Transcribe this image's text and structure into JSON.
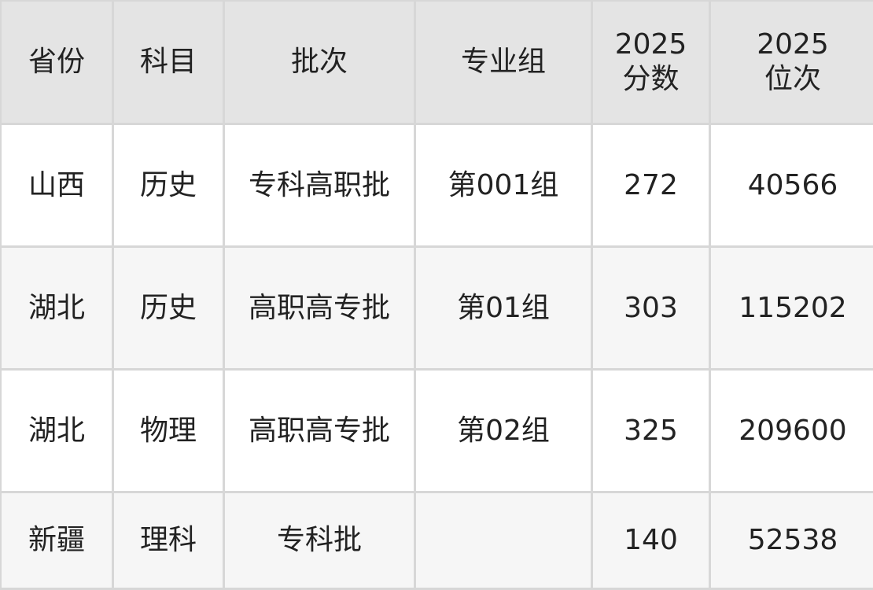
{
  "headers": [
    "省份",
    "科目",
    "批次",
    "专业组",
    "2025\n分数",
    "2025\n位次"
  ],
  "rows": [
    [
      "山西",
      "历史",
      "专科高职批",
      "第001组",
      "272",
      "40566"
    ],
    [
      "湖北",
      "历史",
      "高职高专批",
      "第01组",
      "303",
      "115202"
    ],
    [
      "湖北",
      "物理",
      "高职高专批",
      "第02组",
      "325",
      "209600"
    ],
    [
      "新疆",
      "理科",
      "专科批",
      "",
      "140",
      "52538"
    ]
  ],
  "colors": {
    "header_bg": "#e4e4e4",
    "stripe_bg": "#f6f6f6",
    "border": "#d7d7d7",
    "text": "#222222"
  }
}
